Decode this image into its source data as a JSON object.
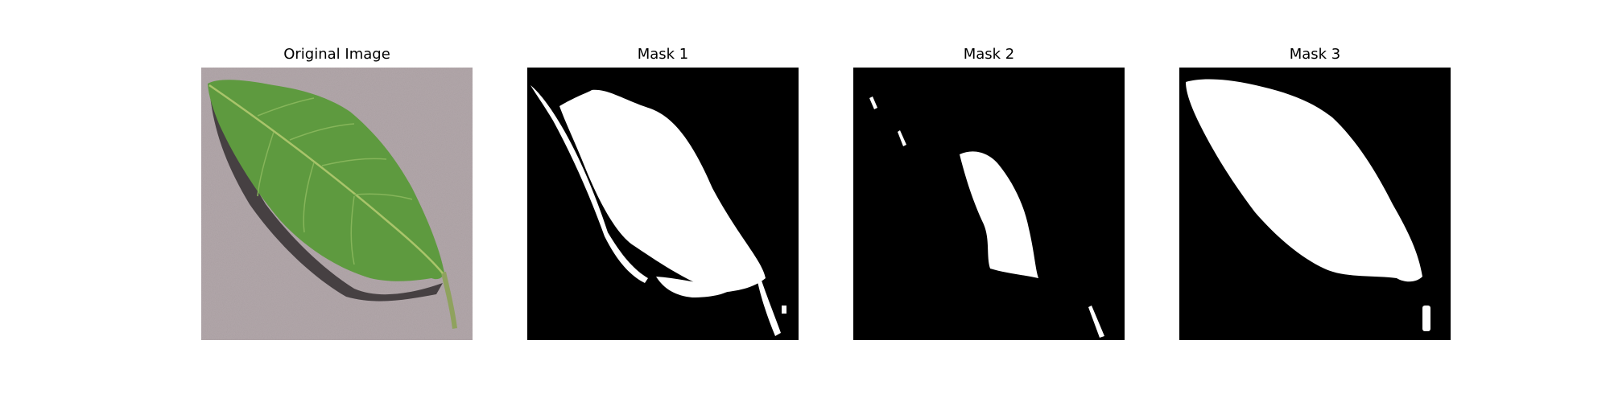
{
  "figure": {
    "panels": [
      {
        "title": "Original Image",
        "kind": "photo"
      },
      {
        "title": "Mask 1",
        "kind": "mask"
      },
      {
        "title": "Mask 2",
        "kind": "mask"
      },
      {
        "title": "Mask 3",
        "kind": "mask"
      }
    ]
  },
  "colors": {
    "background": "#ffffff",
    "photo_background": "#b3a8ab",
    "leaf_green": "#5e9a3f",
    "leaf_vein": "#a9c46a",
    "leaf_shadow": "#3b3537",
    "mask_background": "#000000",
    "mask_foreground": "#ffffff"
  },
  "icons": {
    "photo": "leaf-photo",
    "mask": "segmentation-mask"
  }
}
